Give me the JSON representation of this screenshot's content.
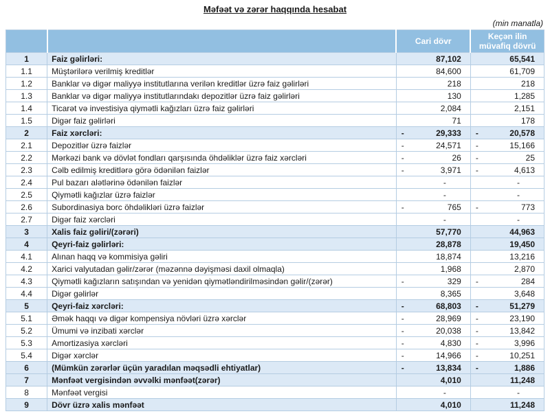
{
  "title": "Məfəət və zərər haqqında hesabat",
  "units_note": "(min manatla)",
  "colors": {
    "header_bg": "#92BFE1",
    "highlight_bg": "#DCE9F6",
    "grid": "#B4CCE2"
  },
  "table": {
    "columns": [
      "Cari dövr",
      "Keçən ilin müvafiq dövrü"
    ],
    "rows": [
      {
        "num": "1",
        "label": "Faiz gəlirləri:",
        "current": "87,102",
        "previous": "65,541",
        "highlight": true
      },
      {
        "num": "1.1",
        "label": "Müştərilərə verilmiş kreditlər",
        "current": "84,600",
        "previous": "61,709",
        "highlight": false
      },
      {
        "num": "1.2",
        "label": "Banklar və digər maliyyə institutlarına verilən kreditlər üzrə faiz gəlirləri",
        "current": "218",
        "previous": "218",
        "highlight": false
      },
      {
        "num": "1.3",
        "label": "Banklar və digər maliyyə institutlarındakı depozitlər üzrə faiz gəlirləri",
        "current": "130",
        "previous": "1,285",
        "highlight": false
      },
      {
        "num": "1.4",
        "label": "Ticarət və investisiya qiymətli kağızları üzrə faiz gəlirləri",
        "current": "2,084",
        "previous": "2,151",
        "highlight": false
      },
      {
        "num": "1.5",
        "label": "Digər faiz gəlirləri",
        "current": "71",
        "previous": "178",
        "highlight": false
      },
      {
        "num": "2",
        "label": "Faiz xərcləri:",
        "current": "- 29,333",
        "previous": "- 20,578",
        "highlight": true
      },
      {
        "num": "2.1",
        "label": "Depozitlər üzrə faizlər",
        "current": "- 24,571",
        "previous": "- 15,166",
        "highlight": false
      },
      {
        "num": "2.2",
        "label": "Mərkəzi bank və dövlət fondları qarşısında öhdəliklər üzrə faiz xərcləri",
        "current": "- 26",
        "previous": "- 25",
        "highlight": false
      },
      {
        "num": "2.3",
        "label": "Cəlb edilmiş kreditlərə görə ödənilən faizlər",
        "current": "- 3,971",
        "previous": "- 4,613",
        "highlight": false
      },
      {
        "num": "2.4",
        "label": "Pul bazarı alətlərinə ödənilən faizlər",
        "current": "-",
        "previous": "-",
        "highlight": false
      },
      {
        "num": "2.5",
        "label": "Qiymətli kağızlar üzrə faizlər",
        "current": "-",
        "previous": "-",
        "highlight": false
      },
      {
        "num": "2.6",
        "label": "Subordinasiya borc öhdəlikləri üzrə faizlər",
        "current": "- 765",
        "previous": "- 773",
        "highlight": false
      },
      {
        "num": "2.7",
        "label": "Digər faiz xərcləri",
        "current": "-",
        "previous": "-",
        "highlight": false
      },
      {
        "num": "3",
        "label": "Xalis faiz gəliri/(zərəri)",
        "current": "57,770",
        "previous": "44,963",
        "highlight": true
      },
      {
        "num": "4",
        "label": "Qeyri-faiz gəlirləri:",
        "current": "28,878",
        "previous": "19,450",
        "highlight": true
      },
      {
        "num": "4.1",
        "label": "Alınan haqq və kommisiya gəliri",
        "current": "18,874",
        "previous": "13,216",
        "highlight": false
      },
      {
        "num": "4.2",
        "label": "Xarici valyutadan gəlir/zərər (məzənnə dəyişməsi daxil olmaqla)",
        "current": "1,968",
        "previous": "2,870",
        "highlight": false
      },
      {
        "num": "4.3",
        "label": "Qiymətli kağızların satışından və yenidən qiymətləndirilməsindən gəlir/(zərər)",
        "current": "- 329",
        "previous": "- 284",
        "highlight": false
      },
      {
        "num": "4.4",
        "label": "Digər gəlirlər",
        "current": "8,365",
        "previous": "3,648",
        "highlight": false
      },
      {
        "num": "5",
        "label": "Qeyri-faiz xərcləri:",
        "current": "- 68,803",
        "previous": "- 51,279",
        "highlight": true
      },
      {
        "num": "5.1",
        "label": "Əmək haqqı və digər kompensiya növləri üzrə xərclər",
        "current": "- 28,969",
        "previous": "- 23,190",
        "highlight": false
      },
      {
        "num": "5.2",
        "label": "Ümumi və inzibati xərclər",
        "current": "- 20,038",
        "previous": "- 13,842",
        "highlight": false
      },
      {
        "num": "5.3",
        "label": "Amortizasiya xərcləri",
        "current": "- 4,830",
        "previous": "- 3,996",
        "highlight": false
      },
      {
        "num": "5.4",
        "label": "Digər xərclər",
        "current": "- 14,966",
        "previous": "- 10,251",
        "highlight": false
      },
      {
        "num": "6",
        "label": "(Mümkün zərərlər üçün yaradılan məqsədli ehtiyatlar)",
        "current": "- 13,834",
        "previous": "- 1,886",
        "highlight": true
      },
      {
        "num": "7",
        "label": "Mənfəət vergisindən əvvəlki mənfəət(zərər)",
        "current": "4,010",
        "previous": "11,248",
        "highlight": true
      },
      {
        "num": "8",
        "label": "Mənfəət vergisi",
        "current": "-",
        "previous": "-",
        "highlight": false
      },
      {
        "num": "9",
        "label": "Dövr üzrə xalis mənfəət",
        "current": "4,010",
        "previous": "11,248",
        "highlight": true
      }
    ]
  }
}
